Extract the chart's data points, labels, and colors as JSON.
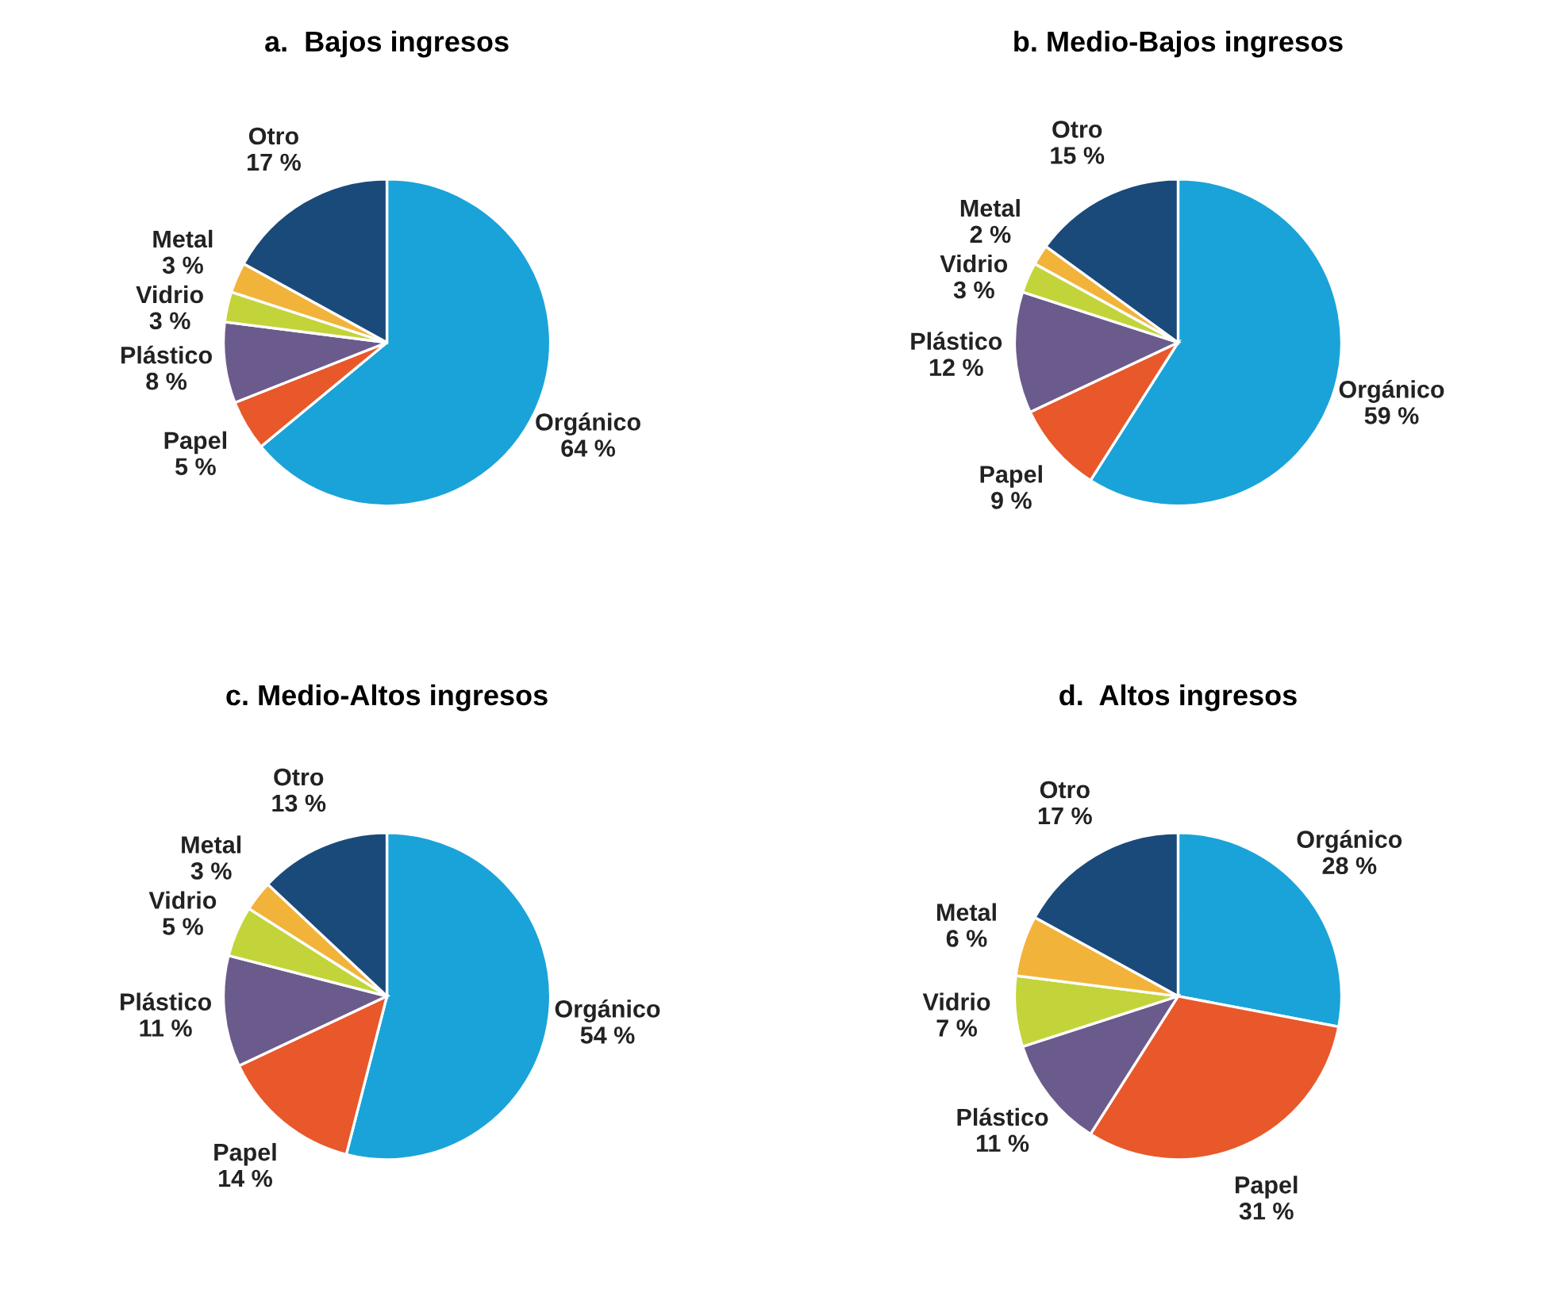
{
  "chart_data": [
    {
      "type": "pie",
      "title": "a.  Bajos ingresos",
      "categories": [
        "Orgánico",
        "Papel",
        "Plástico",
        "Vidrio",
        "Metal",
        "Otro"
      ],
      "values": [
        64,
        5,
        8,
        3,
        3,
        17
      ],
      "value_labels": [
        "64 %",
        "5 %",
        "8 %",
        "3 %",
        "3 %",
        "17 %"
      ],
      "colors": [
        "#1aa3d9",
        "#e8582a",
        "#6b5b8c",
        "#c3d43a",
        "#f2b33a",
        "#1a4a7a"
      ]
    },
    {
      "type": "pie",
      "title": "b. Medio-Bajos ingresos",
      "categories": [
        "Orgánico",
        "Papel",
        "Plástico",
        "Vidrio",
        "Metal",
        "Otro"
      ],
      "values": [
        59,
        9,
        12,
        3,
        2,
        15
      ],
      "value_labels": [
        "59 %",
        "9 %",
        "12 %",
        "3 %",
        "2 %",
        "15 %"
      ],
      "colors": [
        "#1aa3d9",
        "#e8582a",
        "#6b5b8c",
        "#c3d43a",
        "#f2b33a",
        "#1a4a7a"
      ]
    },
    {
      "type": "pie",
      "title": "c. Medio-Altos ingresos",
      "categories": [
        "Orgánico",
        "Papel",
        "Plástico",
        "Vidrio",
        "Metal",
        "Otro"
      ],
      "values": [
        54,
        14,
        11,
        5,
        3,
        13
      ],
      "value_labels": [
        "54 %",
        "14 %",
        "11 %",
        "5 %",
        "3 %",
        "13 %"
      ],
      "colors": [
        "#1aa3d9",
        "#e8582a",
        "#6b5b8c",
        "#c3d43a",
        "#f2b33a",
        "#1a4a7a"
      ]
    },
    {
      "type": "pie",
      "title": "d.  Altos ingresos",
      "categories": [
        "Orgánico",
        "Papel",
        "Plástico",
        "Vidrio",
        "Metal",
        "Otro"
      ],
      "values": [
        28,
        31,
        11,
        7,
        6,
        17
      ],
      "value_labels": [
        "28 %",
        "31 %",
        "11 %",
        "7 %",
        "6 %",
        "17 %"
      ],
      "colors": [
        "#1aa3d9",
        "#e8582a",
        "#6b5b8c",
        "#c3d43a",
        "#f2b33a",
        "#1a4a7a"
      ]
    }
  ]
}
